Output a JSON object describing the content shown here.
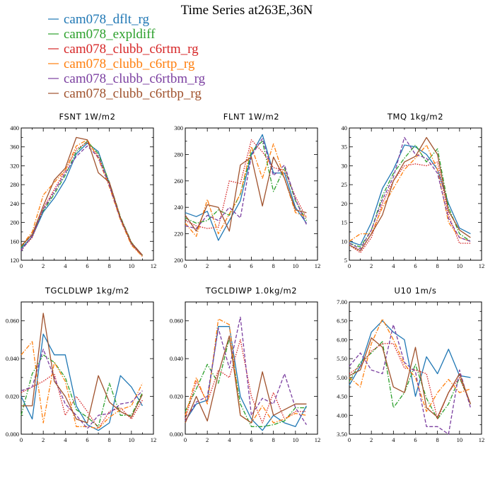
{
  "title": "Time Series at263E,36N",
  "series": [
    {
      "name": "cam078_dflt_rg",
      "color": "#1f77b4",
      "dash": "solid"
    },
    {
      "name": "cam078_expldiff",
      "color": "#2ca02c",
      "dash": "dashdot"
    },
    {
      "name": "cam078_clubb_c6rtm_rg",
      "color": "#d62728",
      "dash": "dot"
    },
    {
      "name": "cam078_clubb_c6rtp_rg",
      "color": "#ff7f0e",
      "dash": "dashdot"
    },
    {
      "name": "cam078_clubb_c6rtbm_rg",
      "color": "#7b3fa0",
      "dash": "dash"
    },
    {
      "name": "cam078_clubb_c6rtbp_rg",
      "color": "#a0522d",
      "dash": "solid"
    }
  ],
  "chart_data": [
    {
      "type": "line",
      "title": "FSNT  1W/m2",
      "x": [
        0,
        1,
        2,
        3,
        4,
        5,
        6,
        7,
        8,
        9,
        10,
        11
      ],
      "xlim": [
        0,
        12
      ],
      "ylim": [
        120,
        400
      ],
      "xticks": [
        0,
        2,
        4,
        6,
        8,
        10,
        12
      ],
      "yticks": [
        120,
        160,
        200,
        240,
        280,
        320,
        360,
        400
      ],
      "ytick_labels": [
        "120",
        "160",
        "200",
        "240",
        "280",
        "320",
        "360",
        "400"
      ],
      "series": [
        {
          "name": "cam078_dflt_rg",
          "values": [
            145,
            170,
            222,
            252,
            290,
            345,
            368,
            350,
            282,
            210,
            155,
            130
          ]
        },
        {
          "name": "cam078_expldiff",
          "values": [
            148,
            175,
            225,
            260,
            300,
            350,
            372,
            345,
            285,
            212,
            158,
            130
          ]
        },
        {
          "name": "cam078_clubb_c6rtm_rg",
          "values": [
            142,
            168,
            230,
            270,
            310,
            355,
            370,
            340,
            280,
            208,
            154,
            128
          ]
        },
        {
          "name": "cam078_clubb_c6rtp_rg",
          "values": [
            150,
            180,
            258,
            285,
            310,
            362,
            375,
            335,
            275,
            205,
            152,
            128
          ]
        },
        {
          "name": "cam078_clubb_c6rtbm_rg",
          "values": [
            140,
            172,
            228,
            265,
            305,
            340,
            362,
            338,
            278,
            207,
            156,
            130
          ]
        },
        {
          "name": "cam078_clubb_c6rtbp_rg",
          "values": [
            150,
            175,
            235,
            290,
            315,
            380,
            375,
            305,
            285,
            210,
            157,
            131
          ]
        }
      ]
    },
    {
      "type": "line",
      "title": "FLNT  1W/m2",
      "x": [
        0,
        1,
        2,
        3,
        4,
        5,
        6,
        7,
        8,
        9,
        10,
        11
      ],
      "xlim": [
        0,
        12
      ],
      "ylim": [
        200,
        300
      ],
      "xticks": [
        0,
        2,
        4,
        6,
        8,
        10,
        12
      ],
      "yticks": [
        200,
        220,
        240,
        260,
        280,
        300
      ],
      "ytick_labels": [
        "200",
        "220",
        "240",
        "260",
        "280",
        "300"
      ],
      "series": [
        {
          "name": "cam078_dflt_rg",
          "values": [
            236,
            233,
            237,
            215,
            230,
            245,
            280,
            295,
            266,
            266,
            240,
            228
          ]
        },
        {
          "name": "cam078_expldiff",
          "values": [
            232,
            228,
            230,
            238,
            234,
            250,
            282,
            290,
            252,
            270,
            245,
            230
          ]
        },
        {
          "name": "cam078_clubb_c6rtm_rg",
          "values": [
            230,
            226,
            224,
            225,
            260,
            258,
            291,
            282,
            270,
            268,
            248,
            232
          ]
        },
        {
          "name": "cam078_clubb_c6rtp_rg",
          "values": [
            228,
            218,
            246,
            220,
            235,
            250,
            286,
            262,
            288,
            262,
            236,
            233
          ]
        },
        {
          "name": "cam078_clubb_c6rtbm_rg",
          "values": [
            226,
            224,
            234,
            230,
            240,
            232,
            279,
            292,
            264,
            272,
            246,
            227
          ]
        },
        {
          "name": "cam078_clubb_c6rtbp_rg",
          "values": [
            234,
            222,
            242,
            240,
            222,
            272,
            278,
            241,
            278,
            262,
            238,
            236
          ]
        }
      ]
    },
    {
      "type": "line",
      "title": "TMQ  1kg/m2",
      "x": [
        0,
        1,
        2,
        3,
        4,
        5,
        6,
        7,
        8,
        9,
        10,
        11
      ],
      "xlim": [
        0,
        12
      ],
      "ylim": [
        5,
        40
      ],
      "xticks": [
        0,
        2,
        4,
        6,
        8,
        10,
        12
      ],
      "yticks": [
        5,
        10,
        15,
        20,
        25,
        30,
        35,
        40
      ],
      "ytick_labels": [
        "5",
        "10",
        "15",
        "20",
        "25",
        "30",
        "35",
        "40"
      ],
      "series": [
        {
          "name": "cam078_dflt_rg",
          "values": [
            10,
            9,
            15,
            24,
            29,
            35.5,
            35,
            33,
            29,
            20,
            13.5,
            12
          ]
        },
        {
          "name": "cam078_expldiff",
          "values": [
            9.5,
            8.5,
            13,
            22,
            28,
            32,
            35.5,
            31,
            34.5,
            19,
            12,
            10
          ]
        },
        {
          "name": "cam078_clubb_c6rtm_rg",
          "values": [
            9,
            7,
            11,
            20,
            26,
            30,
            30.5,
            30,
            31,
            17,
            9.5,
            9.5
          ]
        },
        {
          "name": "cam078_clubb_c6rtp_rg",
          "values": [
            10,
            12,
            12,
            19,
            24,
            29,
            32,
            35.5,
            29,
            15,
            11,
            10
          ]
        },
        {
          "name": "cam078_clubb_c6rtbm_rg",
          "values": [
            9.5,
            8,
            13,
            21,
            27,
            37.5,
            33,
            32,
            28,
            16,
            11,
            10
          ]
        },
        {
          "name": "cam078_clubb_c6rtbp_rg",
          "values": [
            9,
            7.5,
            12,
            17,
            26,
            31,
            32.5,
            37.5,
            33,
            18,
            13,
            11
          ]
        }
      ]
    },
    {
      "type": "line",
      "title": "TGCLDLWP  1kg/m2",
      "x": [
        0,
        1,
        2,
        3,
        4,
        5,
        6,
        7,
        8,
        9,
        10,
        11
      ],
      "xlim": [
        0,
        12
      ],
      "ylim": [
        0,
        0.07
      ],
      "xticks": [
        0,
        2,
        4,
        6,
        8,
        10,
        12
      ],
      "yticks": [
        0,
        0.02,
        0.04,
        0.06
      ],
      "ytick_labels": [
        "0.000",
        "0.020",
        "0.040",
        "0.060"
      ],
      "series": [
        {
          "name": "cam078_dflt_rg",
          "values": [
            0.02,
            0.008,
            0.053,
            0.042,
            0.042,
            0.015,
            0.005,
            0.002,
            0.006,
            0.031,
            0.025,
            0.015
          ]
        },
        {
          "name": "cam078_expldiff",
          "values": [
            0.01,
            0.032,
            0.042,
            0.038,
            0.03,
            0.013,
            0.009,
            0.004,
            0.027,
            0.01,
            0.01,
            0.022
          ]
        },
        {
          "name": "cam078_clubb_c6rtm_rg",
          "values": [
            0.022,
            0.025,
            0.028,
            0.032,
            0.01,
            0.02,
            0.012,
            0.003,
            0.012,
            0.014,
            0.008,
            0.018
          ]
        },
        {
          "name": "cam078_clubb_c6rtp_rg",
          "values": [
            0.042,
            0.049,
            0.006,
            0.038,
            0.028,
            0.004,
            0.004,
            0.003,
            0.009,
            0.013,
            0.015,
            0.027
          ]
        },
        {
          "name": "cam078_clubb_c6rtbm_rg",
          "values": [
            0.023,
            0.025,
            0.045,
            0.03,
            0.016,
            0.01,
            0.003,
            0.01,
            0.011,
            0.016,
            0.017,
            0.023
          ]
        },
        {
          "name": "cam078_clubb_c6rtbp_rg",
          "values": [
            0.015,
            0.015,
            0.064,
            0.028,
            0.02,
            0.008,
            0.006,
            0.031,
            0.017,
            0.012,
            0.009,
            0.021
          ]
        }
      ]
    },
    {
      "type": "line",
      "title": "TGCLDIWP  1.0kg/m2",
      "x": [
        0,
        1,
        2,
        3,
        4,
        5,
        6,
        7,
        8,
        9,
        10,
        11
      ],
      "xlim": [
        0,
        12
      ],
      "ylim": [
        0,
        0.07
      ],
      "xticks": [
        0,
        2,
        4,
        6,
        8,
        10,
        12
      ],
      "yticks": [
        0,
        0.02,
        0.04,
        0.06
      ],
      "ytick_labels": [
        "0.000",
        "0.020",
        "0.040",
        "0.060"
      ],
      "series": [
        {
          "name": "cam078_dflt_rg",
          "values": [
            0.007,
            0.016,
            0.018,
            0.057,
            0.057,
            0.02,
            0.008,
            0.002,
            0.01,
            0.006,
            0.004,
            0.015
          ]
        },
        {
          "name": "cam078_expldiff",
          "values": [
            0.012,
            0.024,
            0.037,
            0.027,
            0.051,
            0.016,
            0.004,
            0.004,
            0.005,
            0.007,
            0.014,
            0.014
          ]
        },
        {
          "name": "cam078_clubb_c6rtm_rg",
          "values": [
            0.008,
            0.028,
            0.017,
            0.034,
            0.03,
            0.05,
            0.02,
            0.006,
            0.022,
            0.008,
            0.012,
            0.012
          ]
        },
        {
          "name": "cam078_clubb_c6rtp_rg",
          "values": [
            0.01,
            0.03,
            0.016,
            0.061,
            0.058,
            0.01,
            0.006,
            0.015,
            0.006,
            0.008,
            0.011,
            0.01
          ]
        },
        {
          "name": "cam078_clubb_c6rtbm_rg",
          "values": [
            0.007,
            0.017,
            0.02,
            0.056,
            0.035,
            0.062,
            0.01,
            0.019,
            0.016,
            0.032,
            0.014,
            0.005
          ]
        },
        {
          "name": "cam078_clubb_c6rtbp_rg",
          "values": [
            0.006,
            0.02,
            0.007,
            0.032,
            0.052,
            0.01,
            0.006,
            0.033,
            0.01,
            0.013,
            0.016,
            0.016
          ]
        }
      ]
    },
    {
      "type": "line",
      "title": "U10  1m/s",
      "x": [
        0,
        1,
        2,
        3,
        4,
        5,
        6,
        7,
        8,
        9,
        10,
        11
      ],
      "xlim": [
        0,
        12
      ],
      "ylim": [
        3.5,
        7.0
      ],
      "xticks": [
        0,
        2,
        4,
        6,
        8,
        10,
        12
      ],
      "yticks": [
        3.5,
        4.0,
        4.5,
        5.0,
        5.5,
        6.0,
        6.5,
        7.0
      ],
      "ytick_labels": [
        "3.50",
        "4.00",
        "4.50",
        "5.00",
        "5.50",
        "6.00",
        "6.50",
        "7.00"
      ],
      "series": [
        {
          "name": "cam078_dflt_rg",
          "values": [
            4.8,
            5.3,
            6.2,
            6.5,
            6.2,
            6.0,
            4.5,
            5.55,
            5.1,
            5.75,
            5.05,
            5.0
          ]
        },
        {
          "name": "cam078_expldiff",
          "values": [
            4.9,
            5.4,
            5.65,
            5.95,
            4.2,
            4.6,
            5.35,
            4.45,
            3.9,
            4.3,
            5.0,
            4.3
          ]
        },
        {
          "name": "cam078_clubb_c6rtm_rg",
          "values": [
            5.1,
            5.3,
            5.7,
            5.9,
            5.9,
            5.25,
            5.2,
            5.1,
            3.9,
            4.6,
            5.0,
            4.3
          ]
        },
        {
          "name": "cam078_clubb_c6rtp_rg",
          "values": [
            5.0,
            4.75,
            5.9,
            6.55,
            6.0,
            5.35,
            5.0,
            4.1,
            4.6,
            4.95,
            4.6,
            4.7
          ]
        },
        {
          "name": "cam078_clubb_c6rtbm_rg",
          "values": [
            5.3,
            5.65,
            5.2,
            5.1,
            6.4,
            5.4,
            5.15,
            3.7,
            3.7,
            3.5,
            5.2,
            4.2
          ]
        },
        {
          "name": "cam078_clubb_c6rtbp_rg",
          "values": [
            5.05,
            5.2,
            6.05,
            5.8,
            4.75,
            4.6,
            5.8,
            4.2,
            3.95,
            4.6,
            5.1,
            4.3
          ]
        }
      ]
    }
  ]
}
